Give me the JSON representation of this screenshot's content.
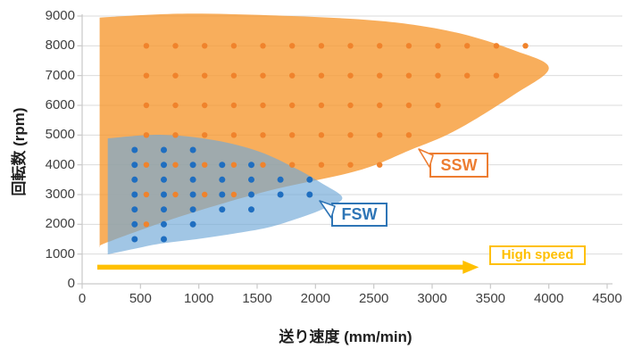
{
  "page": {
    "background": "#FFFFFF"
  },
  "chart_data": {
    "type": "scatter",
    "title": "",
    "xlabel": "送り速度 (mm/min)",
    "ylabel": "回転数 (rpm)",
    "xlim": [
      0,
      4500
    ],
    "ylim": [
      0,
      9000
    ],
    "x_ticks": [
      0,
      500,
      1000,
      1500,
      2000,
      2500,
      3000,
      3500,
      4000,
      4500
    ],
    "y_ticks": [
      0,
      1000,
      2000,
      3000,
      4000,
      5000,
      6000,
      7000,
      8000,
      9000
    ],
    "grid": "horizontal gridlines every 1000 rpm",
    "legend": "none (region callouts instead)",
    "colors": {
      "grid": "#DBDBDB",
      "axis": "#C9C9C9",
      "tick_text": "#3F3F3F",
      "title_text": "#1F1F1F"
    },
    "series": [
      {
        "name": "SSW",
        "label": "SSW",
        "label_color": "#ED7D31",
        "dot_color": "#F0832C",
        "region_fill": "#F69A33",
        "region_opacity": 0.8,
        "outline": [
          [
            150,
            8950
          ],
          [
            900,
            9080
          ],
          [
            1800,
            9000
          ],
          [
            2600,
            8820
          ],
          [
            3200,
            8450
          ],
          [
            3700,
            7850
          ],
          [
            4000,
            7250
          ],
          [
            3700,
            6350
          ],
          [
            3200,
            5150
          ],
          [
            2800,
            4480
          ],
          [
            2360,
            3800
          ],
          [
            1590,
            3120
          ],
          [
            830,
            2250
          ],
          [
            220,
            1400
          ],
          [
            150,
            1230
          ]
        ],
        "rows": [
          {
            "rpm": 8000,
            "x": [
              550,
              800,
              1050,
              1300,
              1550,
              1800,
              2050,
              2300,
              2550,
              2800,
              3050,
              3300,
              3550,
              3800
            ]
          },
          {
            "rpm": 7000,
            "x": [
              550,
              800,
              1050,
              1300,
              1550,
              1800,
              2050,
              2300,
              2550,
              2800,
              3050,
              3300,
              3550
            ]
          },
          {
            "rpm": 6000,
            "x": [
              550,
              800,
              1050,
              1300,
              1550,
              1800,
              2050,
              2300,
              2550,
              2800,
              3050
            ]
          },
          {
            "rpm": 5000,
            "x": [
              550,
              800,
              1050,
              1300,
              1550,
              1800,
              2050,
              2300,
              2550,
              2800
            ]
          },
          {
            "rpm": 4000,
            "x": [
              550,
              800,
              1050,
              1300,
              1550,
              1800,
              2050,
              2300,
              2550
            ]
          },
          {
            "rpm": 3000,
            "x": [
              550,
              800,
              1050,
              1300
            ]
          },
          {
            "rpm": 2000,
            "x": [
              550
            ]
          }
        ]
      },
      {
        "name": "FSW",
        "label": "FSW",
        "label_color": "#2E75B6",
        "dot_color": "#1F6EC0",
        "region_fill": "#70A9D8",
        "region_opacity": 0.66,
        "outline": [
          [
            220,
            4890
          ],
          [
            670,
            5010
          ],
          [
            1130,
            4830
          ],
          [
            1520,
            4440
          ],
          [
            1820,
            3900
          ],
          [
            2050,
            3390
          ],
          [
            2230,
            2880
          ],
          [
            2050,
            2490
          ],
          [
            1820,
            2160
          ],
          [
            1590,
            1890
          ],
          [
            1290,
            1680
          ],
          [
            980,
            1500
          ],
          [
            670,
            1350
          ],
          [
            440,
            1170
          ],
          [
            220,
            990
          ]
        ],
        "rows": [
          {
            "rpm": 4500,
            "x": [
              450,
              700,
              950
            ]
          },
          {
            "rpm": 4000,
            "x": [
              450,
              700,
              950,
              1200,
              1450
            ]
          },
          {
            "rpm": 3500,
            "x": [
              450,
              700,
              950,
              1200,
              1450,
              1700,
              1950
            ]
          },
          {
            "rpm": 3000,
            "x": [
              450,
              700,
              950,
              1200,
              1450,
              1700,
              1950
            ]
          },
          {
            "rpm": 2500,
            "x": [
              450,
              700,
              950,
              1200,
              1450
            ]
          },
          {
            "rpm": 2000,
            "x": [
              450,
              700,
              950
            ]
          },
          {
            "rpm": 1500,
            "x": [
              450,
              700
            ]
          }
        ]
      }
    ],
    "arrow": {
      "label": "High speed",
      "color": "#FFC000",
      "rpm": 560,
      "x_start": 130,
      "x_end": 3400
    }
  }
}
